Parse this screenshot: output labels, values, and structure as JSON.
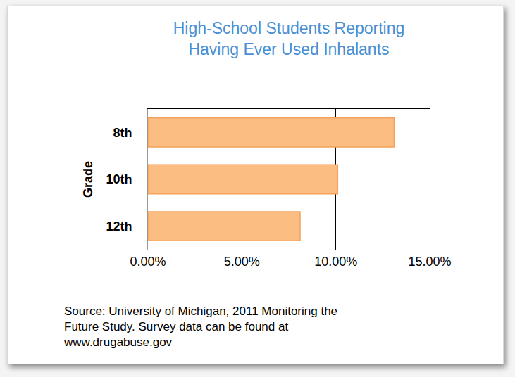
{
  "chart_data": {
    "type": "bar",
    "orientation": "horizontal",
    "title": "High-School Students Reporting Having Ever Used Inhalants",
    "ylabel": "Grade",
    "categories": [
      "8th",
      "10th",
      "12th"
    ],
    "values": [
      13.1,
      10.1,
      8.1
    ],
    "color": "#fbbd82",
    "xlim": [
      0,
      15
    ],
    "xticks": [
      {
        "value": 0,
        "label": "0.00%"
      },
      {
        "value": 5,
        "label": "5.00%"
      },
      {
        "value": 10,
        "label": "10.00%"
      },
      {
        "value": 15,
        "label": "15.00%"
      }
    ],
    "grid": true,
    "annotations": [
      "Source: University of Michigan, 2011 Monitoring the Future Study. Survey data can be found at www.drugabuse.gov"
    ]
  }
}
